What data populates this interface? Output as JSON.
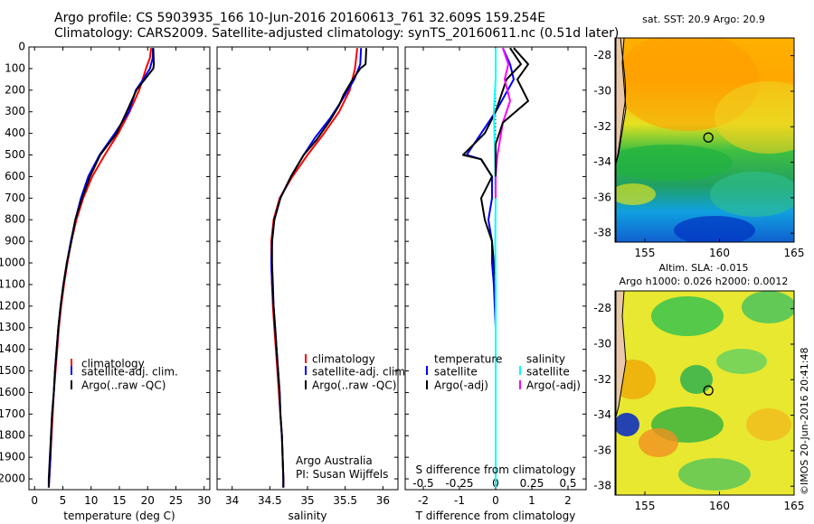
{
  "header": {
    "title_line1": "Argo profile: CS 5903935_166 10-Jun-2016 20160613_761 32.609S 159.254E",
    "title_line2": "Climatology: CARS2009. Satellite-adjusted climatology: synTS_20160611.nc (0.51d later)"
  },
  "colors": {
    "clim": "#ff0000",
    "sat_temp": "#0000ff",
    "argo": "#000000",
    "sat_sal": "#00ffff",
    "argo_sal": "#ff00ff"
  },
  "credits": {
    "org": "Argo Australia",
    "pi": "PI: Susan Wijffels",
    "imos": "©IMOS 20-Jun-2016 20:41:48"
  },
  "chart_data": [
    {
      "type": "line",
      "id": "temperature",
      "xlabel": "temperature (deg C)",
      "ylabel": "",
      "xlim": [
        -1,
        31
      ],
      "ylim": [
        2050,
        0
      ],
      "y_reversed": true,
      "xticks": [
        0,
        5,
        10,
        15,
        20,
        25,
        30
      ],
      "yticks": [
        0,
        100,
        200,
        300,
        400,
        500,
        600,
        700,
        800,
        900,
        1000,
        1100,
        1200,
        1300,
        1400,
        1500,
        1600,
        1700,
        1800,
        1900,
        2000
      ],
      "legend": {
        "entries": [
          "climatology",
          "satellite-adj. clim.",
          "Argo(..raw -QC)"
        ],
        "placement": "lower-middle"
      },
      "series": [
        {
          "name": "climatology",
          "color": "#ff0000",
          "points": [
            [
              20.6,
              5
            ],
            [
              20.4,
              50
            ],
            [
              19.7,
              100
            ],
            [
              18.5,
              200
            ],
            [
              16.8,
              300
            ],
            [
              14.8,
              400
            ],
            [
              12.4,
              500
            ],
            [
              10.2,
              600
            ],
            [
              8.6,
              700
            ],
            [
              7.4,
              800
            ],
            [
              6.5,
              900
            ],
            [
              5.8,
              1000
            ],
            [
              5.2,
              1100
            ],
            [
              4.7,
              1200
            ],
            [
              4.3,
              1300
            ],
            [
              4.0,
              1400
            ],
            [
              3.7,
              1500
            ],
            [
              3.4,
              1600
            ],
            [
              3.2,
              1700
            ],
            [
              3.0,
              1800
            ],
            [
              2.8,
              1900
            ],
            [
              2.6,
              2000
            ],
            [
              2.5,
              2040
            ]
          ]
        },
        {
          "name": "satellite-adj. clim.",
          "color": "#0000ff",
          "points": [
            [
              20.9,
              5
            ],
            [
              20.9,
              50
            ],
            [
              20.4,
              100
            ],
            [
              19.2,
              150
            ],
            [
              17.9,
              200
            ],
            [
              16.7,
              300
            ],
            [
              14.2,
              400
            ],
            [
              11.5,
              500
            ],
            [
              9.5,
              600
            ],
            [
              8.2,
              700
            ],
            [
              7.2,
              800
            ],
            [
              6.4,
              900
            ],
            [
              5.7,
              1000
            ],
            [
              5.1,
              1100
            ],
            [
              4.6,
              1200
            ],
            [
              4.2,
              1300
            ],
            [
              3.9,
              1400
            ],
            [
              3.6,
              1500
            ],
            [
              3.4,
              1600
            ],
            [
              3.1,
              1700
            ],
            [
              2.9,
              1800
            ],
            [
              2.8,
              1900
            ],
            [
              2.6,
              2000
            ],
            [
              2.5,
              2040
            ]
          ]
        },
        {
          "name": "Argo(..raw -QC)",
          "color": "#000000",
          "points": [
            [
              21.0,
              5
            ],
            [
              21.1,
              80
            ],
            [
              21.0,
              100
            ],
            [
              19.5,
              150
            ],
            [
              18.0,
              200
            ],
            [
              16.3,
              300
            ],
            [
              14.5,
              400
            ],
            [
              11.6,
              500
            ],
            [
              9.8,
              600
            ],
            [
              8.4,
              700
            ],
            [
              7.2,
              800
            ],
            [
              6.5,
              900
            ],
            [
              5.7,
              1000
            ],
            [
              5.1,
              1100
            ],
            [
              4.6,
              1200
            ],
            [
              4.2,
              1300
            ],
            [
              3.9,
              1400
            ],
            [
              3.6,
              1500
            ],
            [
              3.4,
              1600
            ],
            [
              3.1,
              1700
            ],
            [
              2.9,
              1800
            ],
            [
              2.7,
              1900
            ],
            [
              2.5,
              2000
            ],
            [
              2.5,
              2040
            ]
          ]
        }
      ]
    },
    {
      "type": "line",
      "id": "salinity",
      "xlabel": "salinity",
      "ylabel": "",
      "xlim": [
        33.8,
        36.2
      ],
      "ylim": [
        2050,
        0
      ],
      "y_reversed": true,
      "xticks": [
        34,
        34.5,
        35,
        35.5,
        36
      ],
      "legend": {
        "entries": [
          "climatology",
          "satellite-adj. clim.",
          "Argo(..raw -QC)"
        ],
        "placement": "lower-middle"
      },
      "series": [
        {
          "name": "climatology",
          "color": "#ff0000",
          "points": [
            [
              35.66,
              5
            ],
            [
              35.63,
              100
            ],
            [
              35.56,
              200
            ],
            [
              35.42,
              300
            ],
            [
              35.22,
              400
            ],
            [
              35.0,
              500
            ],
            [
              34.8,
              600
            ],
            [
              34.63,
              700
            ],
            [
              34.55,
              800
            ],
            [
              34.52,
              900
            ],
            [
              34.52,
              1000
            ],
            [
              34.53,
              1100
            ],
            [
              34.54,
              1200
            ],
            [
              34.56,
              1300
            ],
            [
              34.58,
              1400
            ],
            [
              34.6,
              1500
            ],
            [
              34.62,
              1600
            ],
            [
              34.64,
              1700
            ],
            [
              34.66,
              1800
            ],
            [
              34.67,
              1900
            ],
            [
              34.68,
              2000
            ],
            [
              34.68,
              2040
            ]
          ]
        },
        {
          "name": "satellite-adj. clim.",
          "color": "#0000ff",
          "points": [
            [
              35.71,
              5
            ],
            [
              35.7,
              80
            ],
            [
              35.62,
              150
            ],
            [
              35.45,
              250
            ],
            [
              35.3,
              330
            ],
            [
              35.1,
              420
            ],
            [
              34.95,
              500
            ],
            [
              34.78,
              600
            ],
            [
              34.64,
              700
            ],
            [
              34.56,
              800
            ],
            [
              34.53,
              900
            ],
            [
              34.52,
              1000
            ],
            [
              34.53,
              1100
            ],
            [
              34.55,
              1200
            ],
            [
              34.57,
              1300
            ],
            [
              34.59,
              1400
            ],
            [
              34.61,
              1500
            ],
            [
              34.63,
              1600
            ],
            [
              34.64,
              1700
            ],
            [
              34.66,
              1800
            ],
            [
              34.67,
              1900
            ],
            [
              34.68,
              2000
            ],
            [
              34.68,
              2040
            ]
          ]
        },
        {
          "name": "Argo(..raw -QC)",
          "color": "#000000",
          "points": [
            [
              35.78,
              5
            ],
            [
              35.77,
              80
            ],
            [
              35.7,
              100
            ],
            [
              35.6,
              150
            ],
            [
              35.48,
              220
            ],
            [
              35.42,
              270
            ],
            [
              35.3,
              340
            ],
            [
              35.12,
              430
            ],
            [
              34.95,
              500
            ],
            [
              34.78,
              600
            ],
            [
              34.64,
              700
            ],
            [
              34.56,
              800
            ],
            [
              34.53,
              900
            ],
            [
              34.53,
              1000
            ],
            [
              34.54,
              1100
            ],
            [
              34.55,
              1200
            ],
            [
              34.57,
              1300
            ],
            [
              34.59,
              1400
            ],
            [
              34.61,
              1500
            ],
            [
              34.63,
              1600
            ],
            [
              34.64,
              1700
            ],
            [
              34.66,
              1800
            ],
            [
              34.67,
              1900
            ],
            [
              34.68,
              2000
            ],
            [
              34.68,
              2040
            ]
          ]
        }
      ]
    },
    {
      "type": "line",
      "id": "difference",
      "xlabel": "T difference from climatology",
      "xlabel_top": "S difference from climatology",
      "xlim": [
        -2.5,
        2.5
      ],
      "ylim": [
        2050,
        0
      ],
      "y_reversed": true,
      "xticks": [
        -2,
        -1,
        0,
        1,
        2
      ],
      "xticks_top_labels": [
        "-0.5",
        "-0.25",
        "0",
        "0.25",
        "0.5"
      ],
      "legend": {
        "entries": [
          "temperature",
          "satellite",
          "Argo(-adj)",
          "salinity",
          "satellite",
          "Argo(-adj)"
        ],
        "placement": "lower-middle"
      },
      "series": [
        {
          "name": "temperature satellite",
          "color": "#0000ff",
          "points": [
            [
              0.2,
              5
            ],
            [
              0.4,
              80
            ],
            [
              0.5,
              150
            ],
            [
              0.0,
              300
            ],
            [
              -0.4,
              400
            ],
            [
              -0.8,
              500
            ],
            [
              -0.4,
              520
            ],
            [
              -0.1,
              600
            ],
            [
              -0.1,
              700
            ],
            [
              -0.2,
              800
            ],
            [
              -0.1,
              900
            ],
            [
              -0.1,
              1000
            ],
            [
              -0.05,
              1100
            ],
            [
              0,
              1300
            ],
            [
              0,
              1600
            ],
            [
              0,
              2040
            ]
          ]
        },
        {
          "name": "temperature Argo(-adj)",
          "color": "#000000",
          "points": [
            [
              0.4,
              5
            ],
            [
              0.7,
              80
            ],
            [
              0.3,
              150
            ],
            [
              0.0,
              300
            ],
            [
              -0.3,
              400
            ],
            [
              -0.9,
              500
            ],
            [
              -0.4,
              520
            ],
            [
              -0.1,
              600
            ],
            [
              -0.4,
              700
            ],
            [
              -0.3,
              800
            ],
            [
              -0.1,
              900
            ],
            [
              -0.05,
              1000
            ],
            [
              0,
              1100
            ],
            [
              0,
              1300
            ],
            [
              0,
              1600
            ],
            [
              0,
              2040
            ]
          ]
        },
        {
          "name": "salinity satellite",
          "color": "#00ffff",
          "points": [
            [
              0,
              5
            ],
            [
              0,
              150
            ],
            [
              -0.05,
              300
            ],
            [
              -0.02,
              500
            ],
            [
              0,
              700
            ],
            [
              -0.01,
              900
            ],
            [
              0,
              1100
            ],
            [
              0,
              1400
            ],
            [
              0,
              2040
            ]
          ]
        },
        {
          "name": "salinity Argo(-adj)",
          "color": "#ff00ff",
          "points": [
            [
              0.2,
              5
            ],
            [
              0.35,
              80
            ],
            [
              0.25,
              150
            ],
            [
              0.4,
              250
            ],
            [
              0.2,
              350
            ],
            [
              0.05,
              500
            ],
            [
              0,
              600
            ],
            [
              0,
              700
            ]
          ]
        },
        {
          "name": "salinity Argo(-adj) raw",
          "color": "#000000",
          "points": [
            [
              0.5,
              5
            ],
            [
              0.9,
              80
            ],
            [
              0.6,
              150
            ],
            [
              0.9,
              250
            ],
            [
              0.2,
              350
            ],
            [
              0.0,
              450
            ],
            [
              0,
              600
            ]
          ]
        }
      ]
    },
    {
      "type": "heatmap",
      "id": "sst_map",
      "title": "sat. SST: 20.9 Argo: 20.9",
      "xlim": [
        153,
        165
      ],
      "ylim": [
        -38.5,
        -27
      ],
      "xticks": [
        155,
        160,
        165
      ],
      "yticks": [
        -28,
        -30,
        -32,
        -34,
        -36,
        -38
      ],
      "float_position": [
        159.254,
        -32.609
      ]
    },
    {
      "type": "heatmap",
      "id": "sla_map",
      "title_line1": "Altim. SLA: -0.015",
      "title_line2": "Argo h1000: 0.026 h2000: 0.0012",
      "xlim": [
        153,
        165
      ],
      "ylim": [
        -38.5,
        -27
      ],
      "xticks": [
        155,
        160,
        165
      ],
      "yticks": [
        -28,
        -30,
        -32,
        -34,
        -36,
        -38
      ],
      "float_position": [
        159.254,
        -32.609
      ]
    }
  ]
}
